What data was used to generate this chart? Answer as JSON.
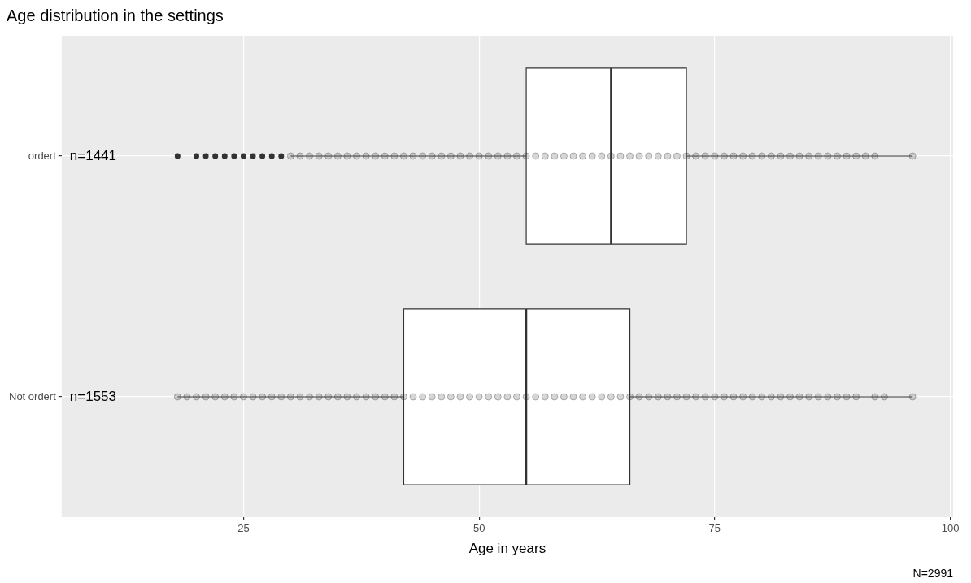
{
  "chart_data": {
    "type": "box",
    "orientation": "horizontal",
    "title": "Age distribution in the settings",
    "xlabel": "Age in years",
    "categories": [
      "ordert",
      "Not ordert"
    ],
    "boxes": [
      {
        "low": 30,
        "q1": 55,
        "median": 64,
        "q3": 72,
        "high": 96,
        "outliers": [
          18,
          20,
          21,
          22,
          23,
          24,
          25,
          26,
          27,
          28,
          29
        ]
      },
      {
        "low": 18,
        "q1": 42,
        "median": 55,
        "q3": 66,
        "high": 96
      }
    ],
    "series": [
      {
        "type": "scatter",
        "color": "#333333",
        "x": [
          "ordert",
          "ordert",
          "ordert",
          "ordert",
          "ordert",
          "ordert",
          "ordert",
          "ordert",
          "ordert",
          "ordert",
          "ordert",
          "ordert",
          "ordert",
          "ordert",
          "ordert",
          "ordert",
          "ordert",
          "ordert",
          "ordert",
          "ordert",
          "ordert",
          "ordert",
          "ordert",
          "ordert",
          "ordert",
          "ordert",
          "ordert",
          "ordert",
          "ordert",
          "ordert",
          "ordert",
          "ordert",
          "ordert",
          "ordert",
          "ordert",
          "ordert",
          "ordert",
          "ordert",
          "ordert",
          "ordert",
          "ordert",
          "ordert",
          "ordert",
          "ordert",
          "ordert",
          "ordert",
          "ordert",
          "ordert",
          "ordert",
          "ordert",
          "ordert",
          "ordert",
          "ordert",
          "ordert",
          "ordert",
          "ordert",
          "ordert",
          "ordert",
          "ordert",
          "ordert",
          "ordert",
          "ordert",
          "ordert",
          "ordert"
        ],
        "values": [
          30,
          31,
          32,
          33,
          34,
          35,
          36,
          37,
          38,
          39,
          40,
          41,
          42,
          43,
          44,
          45,
          46,
          47,
          48,
          49,
          50,
          51,
          52,
          53,
          54,
          55,
          56,
          57,
          58,
          59,
          60,
          61,
          62,
          63,
          64,
          65,
          66,
          67,
          68,
          69,
          70,
          71,
          72,
          73,
          74,
          75,
          76,
          77,
          78,
          79,
          80,
          81,
          82,
          83,
          84,
          85,
          86,
          87,
          88,
          89,
          90,
          92,
          96,
          91
        ]
      },
      {
        "type": "scatter",
        "color": "#333333",
        "x": [
          "Not ordert",
          "Not ordert",
          "Not ordert",
          "Not ordert",
          "Not ordert",
          "Not ordert",
          "Not ordert",
          "Not ordert",
          "Not ordert",
          "Not ordert",
          "Not ordert",
          "Not ordert",
          "Not ordert",
          "Not ordert",
          "Not ordert",
          "Not ordert",
          "Not ordert",
          "Not ordert",
          "Not ordert",
          "Not ordert",
          "Not ordert",
          "Not ordert",
          "Not ordert",
          "Not ordert",
          "Not ordert",
          "Not ordert",
          "Not ordert",
          "Not ordert",
          "Not ordert",
          "Not ordert",
          "Not ordert",
          "Not ordert",
          "Not ordert",
          "Not ordert",
          "Not ordert",
          "Not ordert",
          "Not ordert",
          "Not ordert",
          "Not ordert",
          "Not ordert",
          "Not ordert",
          "Not ordert",
          "Not ordert",
          "Not ordert",
          "Not ordert",
          "Not ordert",
          "Not ordert",
          "Not ordert",
          "Not ordert",
          "Not ordert",
          "Not ordert",
          "Not ordert",
          "Not ordert",
          "Not ordert",
          "Not ordert",
          "Not ordert",
          "Not ordert",
          "Not ordert",
          "Not ordert",
          "Not ordert",
          "Not ordert",
          "Not ordert",
          "Not ordert",
          "Not ordert",
          "Not ordert",
          "Not ordert",
          "Not ordert",
          "Not ordert",
          "Not ordert",
          "Not ordert",
          "Not ordert",
          "Not ordert",
          "Not ordert",
          "Not ordert",
          "Not ordert",
          "Not ordert"
        ],
        "values": [
          18,
          19,
          20,
          21,
          22,
          23,
          24,
          25,
          26,
          27,
          28,
          29,
          30,
          31,
          32,
          33,
          34,
          35,
          36,
          37,
          38,
          39,
          40,
          41,
          42,
          43,
          44,
          45,
          46,
          47,
          48,
          49,
          50,
          51,
          52,
          53,
          54,
          55,
          56,
          57,
          58,
          59,
          60,
          61,
          62,
          63,
          64,
          65,
          66,
          67,
          68,
          69,
          70,
          71,
          72,
          73,
          74,
          75,
          76,
          77,
          78,
          79,
          80,
          81,
          82,
          83,
          84,
          85,
          86,
          87,
          88,
          89,
          92,
          93,
          96,
          90
        ]
      }
    ],
    "xlim": [
      5.7,
      100.3
    ],
    "xticks": [
      25,
      50,
      75,
      100
    ],
    "grid": true,
    "legend": false,
    "annotations": [
      "n=1441",
      "n=1553",
      "N=2991"
    ]
  }
}
